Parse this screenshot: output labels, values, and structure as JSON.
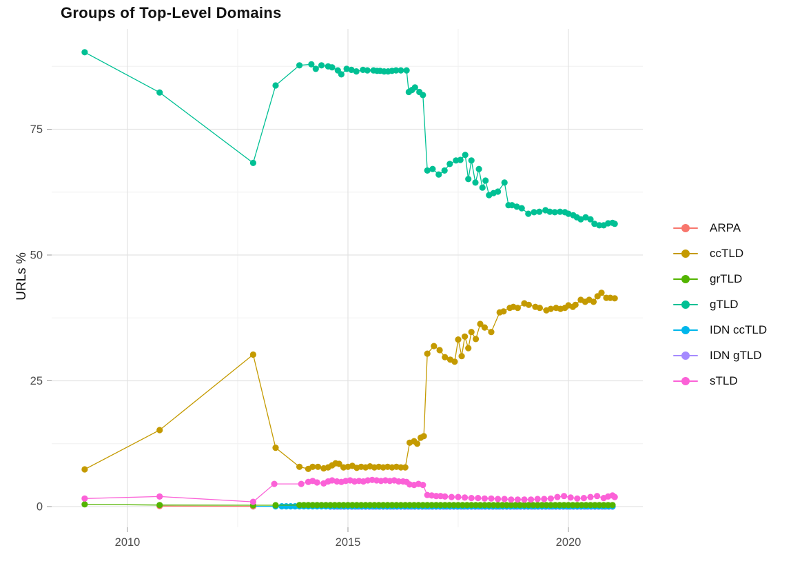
{
  "title": "Groups of Top-Level Domains",
  "chart_data": {
    "type": "line",
    "title": "Groups of Top-Level Domains",
    "xlabel": "",
    "ylabel": "URLs %",
    "xlim": [
      2008.3,
      2021.7
    ],
    "ylim": [
      -4,
      95
    ],
    "grid": "on",
    "legend_position": "right",
    "x_ticks": {
      "values": [
        2010,
        2015,
        2020
      ],
      "labels": [
        "2010",
        "2015",
        "2020"
      ]
    },
    "y_ticks": {
      "values": [
        0,
        25,
        50,
        75
      ],
      "labels": [
        "0",
        "25",
        "50",
        "75"
      ]
    },
    "x_minor": [
      2012.5,
      2017.5
    ],
    "y_minor": [
      12.5,
      37.5,
      62.5,
      87.5
    ],
    "legend_order": [
      "ARPA",
      "ccTLD",
      "grTLD",
      "gTLD",
      "IDN ccTLD",
      "IDN gTLD",
      "sTLD"
    ],
    "draw_order": [
      "IDN gTLD",
      "IDN ccTLD",
      "ARPA",
      "grTLD",
      "ccTLD",
      "gTLD",
      "sTLD"
    ],
    "series": [
      {
        "name": "ARPA",
        "color": "#F8766D",
        "points": [
          [
            2010.73,
            0.1
          ],
          [
            2012.85,
            0.05
          ]
        ]
      },
      {
        "name": "ccTLD",
        "color": "#C49A00",
        "points": [
          [
            2009.03,
            7.4
          ],
          [
            2010.73,
            15.2
          ],
          [
            2012.85,
            30.2
          ],
          [
            2013.36,
            11.7
          ],
          [
            2013.9,
            7.9
          ],
          [
            2014.1,
            7.5
          ],
          [
            2014.2,
            7.9
          ],
          [
            2014.32,
            7.9
          ],
          [
            2014.45,
            7.6
          ],
          [
            2014.55,
            7.8
          ],
          [
            2014.64,
            8.2
          ],
          [
            2014.72,
            8.6
          ],
          [
            2014.8,
            8.5
          ],
          [
            2014.9,
            7.8
          ],
          [
            2015.0,
            7.9
          ],
          [
            2015.1,
            8.1
          ],
          [
            2015.2,
            7.7
          ],
          [
            2015.3,
            7.9
          ],
          [
            2015.4,
            7.8
          ],
          [
            2015.5,
            8.0
          ],
          [
            2015.6,
            7.8
          ],
          [
            2015.7,
            7.9
          ],
          [
            2015.8,
            7.8
          ],
          [
            2015.9,
            7.9
          ],
          [
            2016.0,
            7.8
          ],
          [
            2016.1,
            7.9
          ],
          [
            2016.2,
            7.8
          ],
          [
            2016.3,
            7.8
          ],
          [
            2016.4,
            12.7
          ],
          [
            2016.5,
            13.0
          ],
          [
            2016.57,
            12.5
          ],
          [
            2016.65,
            13.7
          ],
          [
            2016.72,
            14.0
          ],
          [
            2016.8,
            30.4
          ],
          [
            2016.95,
            31.9
          ],
          [
            2017.08,
            31.1
          ],
          [
            2017.2,
            29.7
          ],
          [
            2017.32,
            29.2
          ],
          [
            2017.42,
            28.8
          ],
          [
            2017.5,
            33.2
          ],
          [
            2017.58,
            29.9
          ],
          [
            2017.65,
            33.8
          ],
          [
            2017.73,
            31.5
          ],
          [
            2017.8,
            34.7
          ],
          [
            2017.9,
            33.3
          ],
          [
            2018.0,
            36.3
          ],
          [
            2018.1,
            35.6
          ],
          [
            2018.25,
            34.7
          ],
          [
            2018.44,
            38.6
          ],
          [
            2018.53,
            38.8
          ],
          [
            2018.67,
            39.5
          ],
          [
            2018.75,
            39.7
          ],
          [
            2018.85,
            39.5
          ],
          [
            2019.0,
            40.4
          ],
          [
            2019.1,
            40.1
          ],
          [
            2019.25,
            39.7
          ],
          [
            2019.35,
            39.5
          ],
          [
            2019.5,
            39.0
          ],
          [
            2019.6,
            39.3
          ],
          [
            2019.72,
            39.5
          ],
          [
            2019.82,
            39.3
          ],
          [
            2019.92,
            39.5
          ],
          [
            2020.0,
            40.0
          ],
          [
            2020.1,
            39.7
          ],
          [
            2020.16,
            40.1
          ],
          [
            2020.28,
            41.1
          ],
          [
            2020.38,
            40.7
          ],
          [
            2020.47,
            41.1
          ],
          [
            2020.57,
            40.7
          ],
          [
            2020.66,
            41.8
          ],
          [
            2020.75,
            42.5
          ],
          [
            2020.86,
            41.5
          ],
          [
            2020.95,
            41.5
          ],
          [
            2021.05,
            41.4
          ]
        ]
      },
      {
        "name": "grTLD",
        "color": "#53B400",
        "points": [
          [
            2009.03,
            0.45
          ],
          [
            2010.73,
            0.3
          ],
          [
            2012.85,
            0.28
          ],
          [
            2013.36,
            0.28
          ],
          [
            2013.9,
            0.3
          ]
        ],
        "dense": {
          "from": 2014.0,
          "to": 2021.05,
          "step": 0.1,
          "value": 0.3
        }
      },
      {
        "name": "gTLD",
        "color": "#00C094",
        "points": [
          [
            2009.03,
            90.3
          ],
          [
            2010.73,
            82.3
          ],
          [
            2012.85,
            68.3
          ],
          [
            2013.36,
            83.7
          ],
          [
            2013.9,
            87.7
          ],
          [
            2014.17,
            87.9
          ],
          [
            2014.27,
            87.0
          ],
          [
            2014.4,
            87.7
          ],
          [
            2014.55,
            87.5
          ],
          [
            2014.64,
            87.3
          ],
          [
            2014.77,
            86.7
          ],
          [
            2014.85,
            85.9
          ],
          [
            2014.97,
            87.0
          ],
          [
            2015.08,
            86.8
          ],
          [
            2015.19,
            86.5
          ],
          [
            2015.34,
            86.8
          ],
          [
            2015.44,
            86.7
          ],
          [
            2015.58,
            86.7
          ],
          [
            2015.66,
            86.6
          ],
          [
            2015.73,
            86.6
          ],
          [
            2015.82,
            86.5
          ],
          [
            2015.91,
            86.5
          ],
          [
            2016.0,
            86.6
          ],
          [
            2016.09,
            86.7
          ],
          [
            2016.2,
            86.7
          ],
          [
            2016.33,
            86.7
          ],
          [
            2016.38,
            82.4
          ],
          [
            2016.45,
            82.8
          ],
          [
            2016.52,
            83.3
          ],
          [
            2016.62,
            82.4
          ],
          [
            2016.7,
            81.8
          ],
          [
            2016.8,
            66.8
          ],
          [
            2016.92,
            67.1
          ],
          [
            2017.06,
            66.0
          ],
          [
            2017.19,
            66.8
          ],
          [
            2017.31,
            68.1
          ],
          [
            2017.45,
            68.8
          ],
          [
            2017.55,
            68.9
          ],
          [
            2017.66,
            69.9
          ],
          [
            2017.73,
            65.1
          ],
          [
            2017.8,
            68.8
          ],
          [
            2017.89,
            64.4
          ],
          [
            2017.97,
            67.1
          ],
          [
            2018.05,
            63.4
          ],
          [
            2018.12,
            64.8
          ],
          [
            2018.2,
            61.9
          ],
          [
            2018.3,
            62.3
          ],
          [
            2018.4,
            62.6
          ],
          [
            2018.55,
            64.4
          ],
          [
            2018.64,
            59.9
          ],
          [
            2018.72,
            59.9
          ],
          [
            2018.83,
            59.6
          ],
          [
            2018.94,
            59.3
          ],
          [
            2019.09,
            58.2
          ],
          [
            2019.22,
            58.5
          ],
          [
            2019.34,
            58.6
          ],
          [
            2019.48,
            58.9
          ],
          [
            2019.58,
            58.6
          ],
          [
            2019.69,
            58.5
          ],
          [
            2019.81,
            58.6
          ],
          [
            2019.92,
            58.5
          ],
          [
            2020.0,
            58.2
          ],
          [
            2020.11,
            57.9
          ],
          [
            2020.19,
            57.5
          ],
          [
            2020.28,
            57.1
          ],
          [
            2020.39,
            57.5
          ],
          [
            2020.5,
            57.1
          ],
          [
            2020.59,
            56.2
          ],
          [
            2020.7,
            55.9
          ],
          [
            2020.8,
            55.9
          ],
          [
            2020.9,
            56.3
          ],
          [
            2021.0,
            56.4
          ],
          [
            2021.05,
            56.2
          ]
        ]
      },
      {
        "name": "IDN ccTLD",
        "color": "#00B6EB",
        "points": [
          [
            2012.85,
            0.05
          ],
          [
            2013.36,
            0.05
          ]
        ],
        "dense": {
          "from": 2013.5,
          "to": 2021.05,
          "step": 0.1,
          "value": 0.05
        }
      },
      {
        "name": "IDN gTLD",
        "color": "#A58AFF",
        "points": [],
        "dense": {
          "from": 2014.6,
          "to": 2021.05,
          "step": 0.08,
          "value": 0.0
        }
      },
      {
        "name": "sTLD",
        "color": "#FB61D7",
        "points": [
          [
            2009.03,
            1.6
          ],
          [
            2010.73,
            2.0
          ],
          [
            2012.85,
            0.95
          ],
          [
            2013.33,
            4.5
          ],
          [
            2013.94,
            4.5
          ],
          [
            2014.1,
            4.9
          ],
          [
            2014.2,
            5.1
          ],
          [
            2014.3,
            4.8
          ],
          [
            2014.45,
            4.6
          ],
          [
            2014.55,
            5.0
          ],
          [
            2014.64,
            5.2
          ],
          [
            2014.75,
            5.0
          ],
          [
            2014.85,
            4.9
          ],
          [
            2014.95,
            5.1
          ],
          [
            2015.05,
            5.2
          ],
          [
            2015.15,
            5.0
          ],
          [
            2015.25,
            5.1
          ],
          [
            2015.35,
            5.0
          ],
          [
            2015.45,
            5.2
          ],
          [
            2015.55,
            5.3
          ],
          [
            2015.65,
            5.2
          ],
          [
            2015.75,
            5.1
          ],
          [
            2015.85,
            5.2
          ],
          [
            2015.95,
            5.1
          ],
          [
            2016.05,
            5.2
          ],
          [
            2016.15,
            5.0
          ],
          [
            2016.25,
            5.0
          ],
          [
            2016.33,
            4.9
          ],
          [
            2016.4,
            4.4
          ],
          [
            2016.5,
            4.3
          ],
          [
            2016.6,
            4.5
          ],
          [
            2016.7,
            4.3
          ],
          [
            2016.8,
            2.3
          ],
          [
            2016.9,
            2.2
          ],
          [
            2017.0,
            2.1
          ],
          [
            2017.1,
            2.1
          ],
          [
            2017.2,
            2.0
          ],
          [
            2017.35,
            1.9
          ],
          [
            2017.5,
            1.9
          ],
          [
            2017.65,
            1.8
          ],
          [
            2017.8,
            1.7
          ],
          [
            2017.95,
            1.7
          ],
          [
            2018.1,
            1.6
          ],
          [
            2018.25,
            1.6
          ],
          [
            2018.4,
            1.5
          ],
          [
            2018.55,
            1.5
          ],
          [
            2018.7,
            1.4
          ],
          [
            2018.85,
            1.4
          ],
          [
            2019.0,
            1.4
          ],
          [
            2019.15,
            1.4
          ],
          [
            2019.3,
            1.5
          ],
          [
            2019.45,
            1.5
          ],
          [
            2019.6,
            1.6
          ],
          [
            2019.75,
            1.9
          ],
          [
            2019.9,
            2.1
          ],
          [
            2020.05,
            1.8
          ],
          [
            2020.2,
            1.6
          ],
          [
            2020.35,
            1.7
          ],
          [
            2020.5,
            1.9
          ],
          [
            2020.65,
            2.1
          ],
          [
            2020.8,
            1.7
          ],
          [
            2020.9,
            2.0
          ],
          [
            2021.0,
            2.2
          ],
          [
            2021.05,
            1.9
          ]
        ]
      }
    ]
  }
}
